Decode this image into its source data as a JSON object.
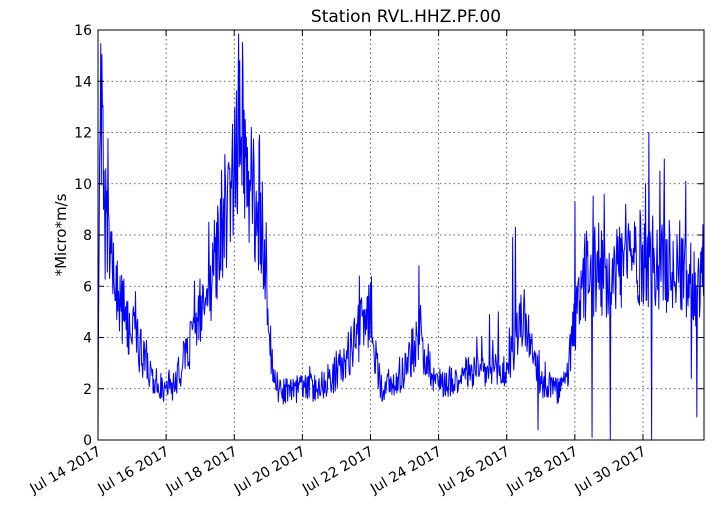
{
  "chart_data": {
    "type": "line",
    "title": "Station RVL.HHZ.PF.00",
    "xlabel": "",
    "ylabel": "*Micro*m/s",
    "x_range": [
      "2017-07-14",
      "2017-07-31 19:00"
    ],
    "ylim": [
      0,
      16
    ],
    "y_ticks": [
      0,
      2,
      4,
      6,
      8,
      10,
      12,
      14,
      16
    ],
    "x_ticks": [
      {
        "date": "2017-07-14",
        "label": "Jul 14 2017"
      },
      {
        "date": "2017-07-16",
        "label": "Jul 16 2017"
      },
      {
        "date": "2017-07-18",
        "label": "Jul 18 2017"
      },
      {
        "date": "2017-07-20",
        "label": "Jul 20 2017"
      },
      {
        "date": "2017-07-22",
        "label": "Jul 22 2017"
      },
      {
        "date": "2017-07-24",
        "label": "Jul 24 2017"
      },
      {
        "date": "2017-07-26",
        "label": "Jul 26 2017"
      },
      {
        "date": "2017-07-28",
        "label": "Jul 28 2017"
      },
      {
        "date": "2017-07-30",
        "label": "Jul 30 2017"
      }
    ],
    "grid": true,
    "series": [
      {
        "color": "#0000ff",
        "points": [
          [
            "2017-07-14 00:00",
            0.5
          ],
          [
            "2017-07-14 01:30",
            15.0
          ],
          [
            "2017-07-14 03:00",
            12.0
          ],
          [
            "2017-07-14 05:00",
            8.5
          ],
          [
            "2017-07-14 08:00",
            7.2
          ],
          [
            "2017-07-14 12:00",
            6.0
          ],
          [
            "2017-07-14 18:00",
            5.0
          ],
          [
            "2017-07-15 00:00",
            4.3
          ],
          [
            "2017-07-15 06:00",
            3.5
          ],
          [
            "2017-07-15 12:00",
            2.8
          ],
          [
            "2017-07-15 18:00",
            2.2
          ],
          [
            "2017-07-16 00:00",
            1.8
          ],
          [
            "2017-07-16 06:00",
            2.2
          ],
          [
            "2017-07-16 12:00",
            3.0
          ],
          [
            "2017-07-16 18:00",
            4.0
          ],
          [
            "2017-07-17 00:00",
            5.0
          ],
          [
            "2017-07-17 06:00",
            6.0
          ],
          [
            "2017-07-17 12:00",
            7.2
          ],
          [
            "2017-07-17 18:00",
            8.2
          ],
          [
            "2017-07-18 00:00",
            10.0
          ],
          [
            "2017-07-18 04:00",
            13.5
          ],
          [
            "2017-07-18 08:00",
            11.0
          ],
          [
            "2017-07-18 12:00",
            9.5
          ],
          [
            "2017-07-18 18:00",
            8.5
          ],
          [
            "2017-07-18 22:00",
            7.5
          ],
          [
            "2017-07-19 01:00",
            4.0
          ],
          [
            "2017-07-19 04:00",
            2.0
          ],
          [
            "2017-07-19 12:00",
            1.9
          ],
          [
            "2017-07-20 00:00",
            2.0
          ],
          [
            "2017-07-20 12:00",
            2.1
          ],
          [
            "2017-07-21 00:00",
            2.6
          ],
          [
            "2017-07-21 06:00",
            3.0
          ],
          [
            "2017-07-21 12:00",
            3.8
          ],
          [
            "2017-07-21 18:00",
            4.4
          ],
          [
            "2017-07-22 00:00",
            5.0
          ],
          [
            "2017-07-22 04:00",
            3.0
          ],
          [
            "2017-07-22 08:00",
            2.0
          ],
          [
            "2017-07-22 18:00",
            2.2
          ],
          [
            "2017-07-23 00:00",
            2.8
          ],
          [
            "2017-07-23 06:00",
            3.5
          ],
          [
            "2017-07-23 10:00",
            4.2
          ],
          [
            "2017-07-23 14:00",
            3.4
          ],
          [
            "2017-07-23 18:00",
            2.8
          ],
          [
            "2017-07-24 00:00",
            2.2
          ],
          [
            "2017-07-24 12:00",
            2.4
          ],
          [
            "2017-07-25 00:00",
            2.7
          ],
          [
            "2017-07-25 12:00",
            2.6
          ],
          [
            "2017-07-26 00:00",
            2.7
          ],
          [
            "2017-07-26 04:00",
            3.4
          ],
          [
            "2017-07-26 08:00",
            4.2
          ],
          [
            "2017-07-26 12:00",
            5.0
          ],
          [
            "2017-07-26 18:00",
            3.2
          ],
          [
            "2017-07-27 00:00",
            2.2
          ],
          [
            "2017-07-27 12:00",
            1.9
          ],
          [
            "2017-07-27 18:00",
            2.3
          ],
          [
            "2017-07-28 00:00",
            4.5
          ],
          [
            "2017-07-28 06:00",
            6.0
          ],
          [
            "2017-07-28 12:00",
            6.5
          ],
          [
            "2017-07-29 00:00",
            6.6
          ],
          [
            "2017-07-29 12:00",
            6.9
          ],
          [
            "2017-07-30 00:00",
            7.1
          ],
          [
            "2017-07-30 12:00",
            7.0
          ],
          [
            "2017-07-31 00:00",
            6.6
          ],
          [
            "2017-07-31 12:00",
            6.2
          ],
          [
            "2017-07-31 19:00",
            5.8
          ]
        ],
        "spikes": [
          [
            "2017-07-14 03:00",
            13.0
          ],
          [
            "2017-07-14 13:00",
            6.8
          ],
          [
            "2017-07-15 06:00",
            4.3
          ],
          [
            "2017-07-16 20:00",
            6.2
          ],
          [
            "2017-07-17 06:00",
            8.5
          ],
          [
            "2017-07-17 18:00",
            9.3
          ],
          [
            "2017-07-18 04:00",
            14.8
          ],
          [
            "2017-07-18 06:00",
            14.3
          ],
          [
            "2017-07-18 12:00",
            12.2
          ],
          [
            "2017-07-18 18:00",
            11.9
          ],
          [
            "2017-07-21 16:00",
            6.4
          ],
          [
            "2017-07-22 00:00",
            6.1
          ],
          [
            "2017-07-23 10:00",
            6.8
          ],
          [
            "2017-07-25 12:00",
            4.9
          ],
          [
            "2017-07-25 18:00",
            5.0
          ],
          [
            "2017-07-26 04:00",
            7.9
          ],
          [
            "2017-07-26 06:00",
            8.3
          ],
          [
            "2017-07-28 00:00",
            9.3
          ],
          [
            "2017-07-29 12:00",
            9.2
          ],
          [
            "2017-07-30 02:00",
            10.0
          ],
          [
            "2017-07-30 04:00",
            12.0
          ],
          [
            "2017-07-30 12:00",
            10.5
          ],
          [
            "2017-07-31 06:00",
            10.1
          ]
        ],
        "dips": [
          [
            "2017-07-14 00:00",
            0.0
          ],
          [
            "2017-07-26 22:00",
            0.4
          ],
          [
            "2017-07-28 12:00",
            0.1
          ],
          [
            "2017-07-29 01:00",
            0.0
          ],
          [
            "2017-07-30 06:00",
            0.0
          ],
          [
            "2017-07-31 14:00",
            0.9
          ],
          [
            "2017-07-31 10:00",
            2.4
          ]
        ]
      }
    ]
  }
}
